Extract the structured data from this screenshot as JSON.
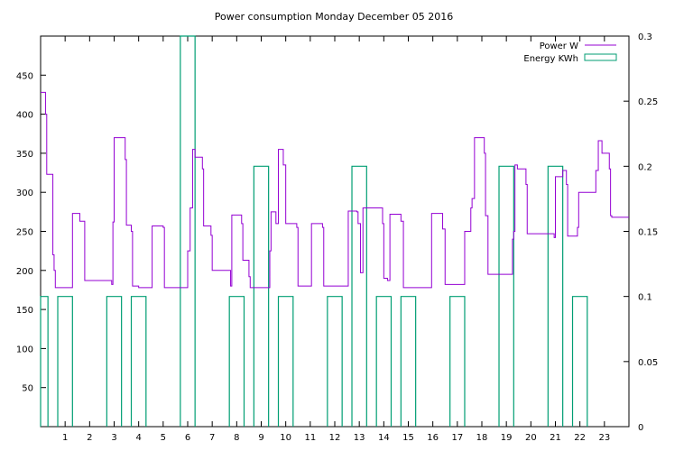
{
  "chart_data": {
    "type": "line",
    "title": "Power consumption Monday December 05 2016",
    "xlabel": "",
    "ylabel": "",
    "y2label": "",
    "xlim": [
      0,
      24
    ],
    "ylim": [
      0,
      500
    ],
    "y2lim": [
      0,
      0.3
    ],
    "x_ticks": [
      1,
      2,
      3,
      4,
      5,
      6,
      7,
      8,
      9,
      10,
      11,
      12,
      13,
      14,
      15,
      16,
      17,
      18,
      19,
      20,
      21,
      22,
      23
    ],
    "x_tick_labels": [
      "1",
      "2",
      "3",
      "4",
      "5",
      "6",
      "7",
      "8",
      "9",
      "10",
      "11",
      "12",
      "13",
      "14",
      "15",
      "16",
      "17",
      "18",
      "19",
      "20",
      "21",
      "22",
      "23"
    ],
    "y_ticks": [
      50,
      100,
      150,
      200,
      250,
      300,
      350,
      400,
      450
    ],
    "y_tick_labels": [
      "50",
      "100",
      "150",
      "200",
      "250",
      "300",
      "350",
      "400",
      "450"
    ],
    "y2_ticks": [
      0,
      0.05,
      0.1,
      0.15,
      0.2,
      0.25,
      0.3
    ],
    "y2_tick_labels": [
      "0",
      "0.05",
      "0.1",
      "0.15",
      "0.2",
      "0.25",
      "0.3"
    ],
    "grid": false,
    "legend_position": "top-right",
    "series": [
      {
        "name": "Power W",
        "axis": "y",
        "style": "step",
        "color": "#9400d3",
        "points": [
          [
            0,
            428
          ],
          [
            0.2,
            400
          ],
          [
            0.25,
            323
          ],
          [
            0.5,
            220
          ],
          [
            0.55,
            200
          ],
          [
            0.6,
            178
          ],
          [
            1.2,
            178
          ],
          [
            1.3,
            273
          ],
          [
            1.6,
            263
          ],
          [
            1.8,
            187
          ],
          [
            2.8,
            187
          ],
          [
            2.9,
            182
          ],
          [
            2.95,
            262
          ],
          [
            3.0,
            370
          ],
          [
            3.45,
            342
          ],
          [
            3.5,
            258
          ],
          [
            3.7,
            250
          ],
          [
            3.75,
            180
          ],
          [
            4.0,
            178
          ],
          [
            4.5,
            178
          ],
          [
            4.55,
            257
          ],
          [
            5.0,
            255
          ],
          [
            5.05,
            178
          ],
          [
            5.9,
            178
          ],
          [
            6.0,
            225
          ],
          [
            6.1,
            280
          ],
          [
            6.2,
            355
          ],
          [
            6.3,
            345
          ],
          [
            6.6,
            330
          ],
          [
            6.65,
            257
          ],
          [
            6.95,
            245
          ],
          [
            7.0,
            200
          ],
          [
            7.7,
            200
          ],
          [
            7.75,
            180
          ],
          [
            7.8,
            271
          ],
          [
            8.2,
            260
          ],
          [
            8.25,
            213
          ],
          [
            8.5,
            192
          ],
          [
            8.55,
            178
          ],
          [
            9.3,
            178
          ],
          [
            9.35,
            225
          ],
          [
            9.4,
            275
          ],
          [
            9.6,
            260
          ],
          [
            9.7,
            355
          ],
          [
            9.9,
            335
          ],
          [
            10.0,
            260
          ],
          [
            10.45,
            255
          ],
          [
            10.5,
            180
          ],
          [
            10.95,
            180
          ],
          [
            11.05,
            260
          ],
          [
            11.5,
            255
          ],
          [
            11.55,
            180
          ],
          [
            12.5,
            180
          ],
          [
            12.55,
            276
          ],
          [
            12.9,
            275
          ],
          [
            12.95,
            260
          ],
          [
            13.05,
            197
          ],
          [
            13.15,
            280
          ],
          [
            13.9,
            280
          ],
          [
            13.95,
            260
          ],
          [
            14.0,
            190
          ],
          [
            14.15,
            187
          ],
          [
            14.25,
            272
          ],
          [
            14.7,
            263
          ],
          [
            14.8,
            178
          ],
          [
            15.9,
            178
          ],
          [
            15.95,
            273
          ],
          [
            16.4,
            253
          ],
          [
            16.5,
            182
          ],
          [
            17.2,
            182
          ],
          [
            17.3,
            250
          ],
          [
            17.55,
            280
          ],
          [
            17.6,
            292
          ],
          [
            17.7,
            370
          ],
          [
            18.1,
            350
          ],
          [
            18.15,
            270
          ],
          [
            18.25,
            195
          ],
          [
            19.1,
            195
          ],
          [
            19.25,
            240
          ],
          [
            19.3,
            250
          ],
          [
            19.35,
            335
          ],
          [
            19.45,
            330
          ],
          [
            19.8,
            310
          ],
          [
            19.85,
            247
          ],
          [
            20.9,
            247
          ],
          [
            20.95,
            242
          ],
          [
            21.0,
            320
          ],
          [
            21.3,
            328
          ],
          [
            21.45,
            310
          ],
          [
            21.5,
            244
          ],
          [
            21.9,
            255
          ],
          [
            21.95,
            300
          ],
          [
            22.6,
            300
          ],
          [
            22.65,
            328
          ],
          [
            22.75,
            366
          ],
          [
            22.9,
            350
          ],
          [
            23.2,
            330
          ],
          [
            23.25,
            270
          ],
          [
            23.3,
            268
          ],
          [
            24,
            268
          ]
        ]
      },
      {
        "name": "Energy KWh",
        "axis": "y2",
        "style": "pulse",
        "color": "#009e73",
        "pulses": [
          [
            0.0,
            0.3,
            0.1
          ],
          [
            0.7,
            1.3,
            0.1
          ],
          [
            2.7,
            3.3,
            0.1
          ],
          [
            3.7,
            4.3,
            0.1
          ],
          [
            5.7,
            6.3,
            0.3
          ],
          [
            7.7,
            8.3,
            0.1
          ],
          [
            8.7,
            9.3,
            0.2
          ],
          [
            9.7,
            10.3,
            0.1
          ],
          [
            11.7,
            12.3,
            0.1
          ],
          [
            12.7,
            13.3,
            0.2
          ],
          [
            13.7,
            14.3,
            0.1
          ],
          [
            14.7,
            15.3,
            0.1
          ],
          [
            16.7,
            17.3,
            0.1
          ],
          [
            18.7,
            19.3,
            0.2
          ],
          [
            20.7,
            21.3,
            0.2
          ],
          [
            21.7,
            22.3,
            0.1
          ]
        ]
      }
    ]
  }
}
